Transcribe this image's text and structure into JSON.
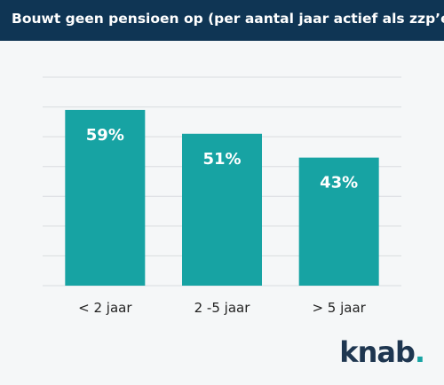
{
  "header": {
    "title": "Bouwt geen pensioen op (per aantal jaar actief als zzp’er)"
  },
  "colors": {
    "header_bg": "#0f3554",
    "bar": "#17a3a3",
    "grid": "#d9dcdf",
    "logo": "#1e3650"
  },
  "logo": {
    "text": "knab",
    "dot": "."
  },
  "chart_data": {
    "type": "bar",
    "title": "Bouwt geen pensioen op (per aantal jaar actief als zzp’er)",
    "categories": [
      "< 2 jaar",
      "2 -5 jaar",
      "> 5 jaar"
    ],
    "values": [
      59,
      51,
      43
    ],
    "value_labels": [
      "59%",
      "51%",
      "43%"
    ],
    "ylim": [
      0,
      70
    ],
    "grid": true
  }
}
